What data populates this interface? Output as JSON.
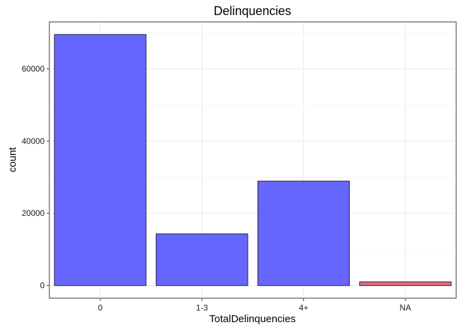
{
  "chart_data": {
    "type": "bar",
    "title": "Delinquencies",
    "xlabel": "TotalDelinquencies",
    "ylabel": "count",
    "categories": [
      "0",
      "1-3",
      "4+",
      "NA"
    ],
    "values": [
      69500,
      14300,
      28900,
      1000
    ],
    "bar_colors": [
      "#6666ff",
      "#6666ff",
      "#6666ff",
      "#f06a6a"
    ],
    "bar_stroke": "#3a3a6a",
    "ylim": [
      -3500,
      73000
    ],
    "yticks": [
      0,
      20000,
      40000,
      60000
    ],
    "ytick_labels": [
      "0",
      "20000",
      "40000",
      "60000"
    ],
    "grid": true,
    "legend": "none"
  }
}
